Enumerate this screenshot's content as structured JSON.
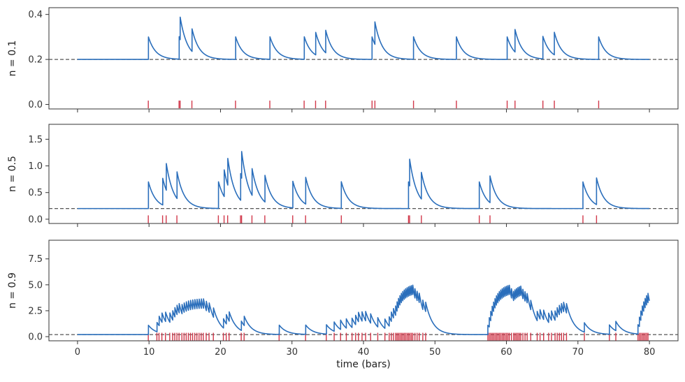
{
  "colors": {
    "signal": "#2a6ebb",
    "events": "#d1384a",
    "baseline": "#555555",
    "frame": "#333333"
  },
  "chart_data": [
    {
      "type": "line",
      "ylabel": "n = 0.1",
      "xlabel": "",
      "xlim": [
        -4,
        84
      ],
      "ylim": [
        -0.02,
        0.43
      ],
      "xticks": [
        0,
        10,
        20,
        30,
        40,
        50,
        60,
        70,
        80
      ],
      "yticks": [
        0.0,
        0.2,
        0.4
      ],
      "ytick_labels": [
        "0.0",
        "0.2",
        "0.4"
      ],
      "show_xtick_labels": false,
      "baseline": 0.2,
      "jump": 0.1,
      "decay": 1.0,
      "event_marker_y": 0.0,
      "event_times": [
        9.9,
        14.2,
        14.35,
        16.0,
        22.1,
        26.9,
        31.7,
        33.3,
        34.7,
        41.2,
        41.6,
        47.0,
        53.0,
        60.1,
        61.2,
        65.1,
        66.7,
        72.9
      ],
      "series": [
        {
          "values_note": "",
          "t_end": 80
        }
      ]
    },
    {
      "type": "line",
      "ylabel": "n = 0.5",
      "xlabel": "",
      "xlim": [
        -4,
        84
      ],
      "ylim": [
        -0.08,
        1.78
      ],
      "xticks": [
        0,
        10,
        20,
        30,
        40,
        50,
        60,
        70,
        80
      ],
      "yticks": [
        0.0,
        0.5,
        1.0,
        1.5
      ],
      "ytick_labels": [
        "0.0",
        "0.5",
        "1.0",
        "1.5"
      ],
      "show_xtick_labels": false,
      "baseline": 0.2,
      "jump": 0.5,
      "decay": 1.0,
      "event_marker_y": 0.0,
      "event_times": [
        9.9,
        11.9,
        12.4,
        13.9,
        19.7,
        20.5,
        21.0,
        22.8,
        22.95,
        24.4,
        26.2,
        30.1,
        31.9,
        36.9,
        46.3,
        46.45,
        48.1,
        56.2,
        57.7,
        70.7,
        72.6
      ],
      "series": [
        {
          "values_note": "",
          "t_end": 80
        }
      ]
    },
    {
      "type": "line",
      "ylabel": "n = 0.9",
      "xlabel": "time (bars)",
      "xlim": [
        -4,
        84
      ],
      "ylim": [
        -0.4,
        9.3
      ],
      "xticks": [
        0,
        10,
        20,
        30,
        40,
        50,
        60,
        70,
        80
      ],
      "xtick_labels": [
        "0",
        "10",
        "20",
        "30",
        "40",
        "50",
        "60",
        "70",
        "80"
      ],
      "yticks": [
        0.0,
        2.5,
        5.0,
        7.5
      ],
      "ytick_labels": [
        "0.0",
        "2.5",
        "5.0",
        "7.5"
      ],
      "show_xtick_labels": true,
      "baseline": 0.2,
      "jump": 0.9,
      "decay": 1.0,
      "event_marker_y": 0.0,
      "event_times": [
        9.9,
        11.1,
        11.4,
        11.8,
        12.3,
        12.9,
        13.3,
        13.6,
        13.9,
        14.2,
        14.6,
        14.9,
        15.2,
        15.5,
        15.8,
        16.1,
        16.4,
        16.7,
        17.0,
        17.3,
        17.6,
        18.0,
        18.4,
        19.0,
        20.4,
        20.8,
        21.2,
        22.9,
        23.3,
        28.2,
        31.9,
        34.8,
        35.9,
        36.8,
        37.6,
        38.4,
        38.9,
        39.3,
        39.8,
        40.3,
        41.0,
        42.0,
        43.0,
        43.6,
        43.9,
        44.2,
        44.5,
        44.7,
        44.9,
        45.1,
        45.3,
        45.5,
        45.7,
        45.9,
        46.1,
        46.3,
        46.5,
        46.7,
        46.9,
        47.2,
        47.5,
        47.8,
        48.3,
        48.7,
        57.4,
        57.6,
        57.8,
        58.0,
        58.2,
        58.4,
        58.6,
        58.8,
        59.0,
        59.2,
        59.4,
        59.6,
        59.8,
        60.0,
        60.2,
        60.4,
        60.7,
        61.0,
        61.2,
        61.4,
        61.6,
        61.8,
        62.0,
        62.3,
        62.6,
        62.9,
        63.4,
        64.3,
        64.7,
        65.2,
        65.9,
        66.3,
        66.8,
        67.1,
        67.4,
        67.7,
        68.0,
        68.4,
        70.9,
        74.4,
        75.3,
        78.4,
        78.6,
        78.8,
        79.0,
        79.2,
        79.4,
        79.6,
        79.8
      ],
      "series": [
        {
          "values_note": "",
          "t_end": 80
        }
      ]
    }
  ]
}
